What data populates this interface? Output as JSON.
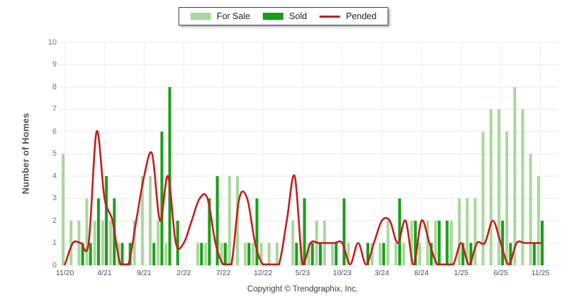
{
  "footer": {
    "text": "Copyright © Trendgraphix, Inc."
  },
  "colors": {
    "for_sale": "#a9d89b",
    "sold": "#17a017",
    "pended": "#c41e1e",
    "grid": "#e9e9e9",
    "vgrid": "#efefef",
    "y_tick_text": "#757575",
    "x_tick_text": "#44505a",
    "y_title_text": "#4d545c",
    "legend_border": "#2f4a63",
    "footer_text": "#3c3c3c"
  },
  "chart_data": {
    "type": "bar+line",
    "title": "",
    "xlabel": "",
    "ylabel": "Number of Homes",
    "ylim": [
      0,
      10
    ],
    "yticks": [
      0,
      1,
      2,
      3,
      4,
      5,
      6,
      7,
      8,
      9,
      10
    ],
    "xticks": [
      "11/20",
      "4/21",
      "9/21",
      "2/22",
      "7/22",
      "12/22",
      "5/23",
      "10/23",
      "3/24",
      "8/24",
      "1/25",
      "6/25",
      "11/25"
    ],
    "xtick_interval": 5,
    "n_months": 61,
    "legend_position": "top-center",
    "grid": "horizontal-lines-plus-vertical-at-labeled-ticks",
    "series": [
      {
        "name": "For Sale",
        "type": "bar",
        "color": "#a9d89b",
        "values": [
          5,
          2,
          2,
          3,
          2,
          2,
          2,
          1,
          0,
          2,
          4,
          4,
          2,
          1,
          0,
          0,
          0,
          1,
          1,
          0,
          1,
          4,
          4,
          1,
          1,
          1,
          1,
          1,
          0,
          2,
          1,
          1,
          2,
          2,
          1,
          0,
          1,
          0,
          0,
          1,
          1,
          2,
          1,
          1,
          2,
          1,
          2,
          2,
          0,
          2,
          3,
          3,
          3,
          6,
          7,
          7,
          6,
          8,
          7,
          5,
          4
        ]
      },
      {
        "name": "Sold",
        "type": "bar",
        "color": "#17a017",
        "values": [
          0,
          0,
          1,
          1,
          3,
          4,
          3,
          1,
          1,
          0,
          0,
          1,
          6,
          8,
          2,
          0,
          0,
          1,
          3,
          4,
          1,
          0,
          0,
          1,
          3,
          0,
          0,
          0,
          0,
          1,
          3,
          1,
          1,
          0,
          1,
          3,
          0,
          0,
          1,
          0,
          1,
          0,
          3,
          0,
          2,
          0,
          1,
          2,
          2,
          0,
          1,
          1,
          0,
          0,
          0,
          2,
          1,
          0,
          0,
          1,
          2
        ]
      },
      {
        "name": "Pended",
        "type": "line",
        "color": "#c41e1e",
        "values": [
          0,
          1,
          1,
          1,
          6,
          3,
          2,
          0,
          0,
          2,
          4,
          5,
          2,
          4,
          1,
          1,
          2,
          3,
          3,
          1,
          0,
          0,
          3,
          3,
          1,
          0,
          0,
          0,
          2,
          4,
          0,
          1,
          1,
          1,
          1,
          1,
          0,
          1,
          0,
          1,
          2,
          2,
          1,
          2,
          0,
          2,
          1,
          0,
          0,
          0,
          1,
          0,
          1,
          1,
          2,
          1,
          0,
          1,
          1,
          1,
          1
        ]
      }
    ]
  }
}
